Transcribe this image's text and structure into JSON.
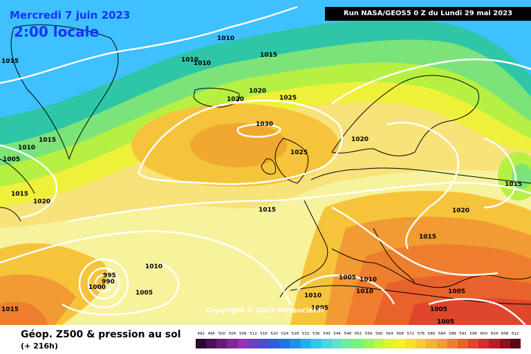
{
  "header": {
    "date": "Mercredi 7 juin 2023",
    "local_time": "2:00 locale",
    "run": "Run NASA/GEOS5 0 Z du Lundi 29 mai 2023"
  },
  "copyright": "Copyright © 2023 Meteociel.fr",
  "legend": {
    "title": "Géop. Z500 & pression au sol",
    "subtitle": "(+ 216h)",
    "scale_values": [
      "492",
      "496",
      "500",
      "504",
      "508",
      "512",
      "516",
      "520",
      "524",
      "528",
      "532",
      "536",
      "540",
      "544",
      "548",
      "552",
      "556",
      "560",
      "564",
      "568",
      "572",
      "576",
      "580",
      "584",
      "588",
      "592",
      "596",
      "600",
      "604",
      "608",
      "612"
    ],
    "scale_colors": [
      "#2a0a30",
      "#4b0f55",
      "#6a1a7a",
      "#84249a",
      "#9c2fb6",
      "#6c3fc4",
      "#4a4dd0",
      "#2f5ed8",
      "#1f76e2",
      "#1c90ea",
      "#20aef0",
      "#30c6f0",
      "#4ad6e0",
      "#5ee4c4",
      "#6cee9e",
      "#7cf37a",
      "#9af55a",
      "#bdf640",
      "#dcf52e",
      "#f2f226",
      "#f8e030",
      "#f7c83a",
      "#f4b23a",
      "#f29a33",
      "#ee7e2e",
      "#e8622c",
      "#e0462c",
      "#d22c2e",
      "#b81c2c",
      "#8e1020",
      "#5a0812"
    ]
  },
  "isobar_labels": [
    "1015",
    "1010",
    "1015",
    "1010",
    "1010",
    "1020",
    "1020",
    "1025",
    "1030",
    "1015",
    "1010",
    "1005",
    "1025",
    "1020",
    "1015",
    "1020",
    "1015",
    "1015",
    "1020",
    "1015",
    "1010",
    "995",
    "990",
    "1000",
    "1005",
    "1010",
    "1005",
    "1010",
    "1005",
    "1010",
    "1005",
    "1005",
    "1005",
    "1015"
  ],
  "colors": {
    "isobar": "#ffffff",
    "coastline": "#000000",
    "title_text": "#1433ff"
  }
}
